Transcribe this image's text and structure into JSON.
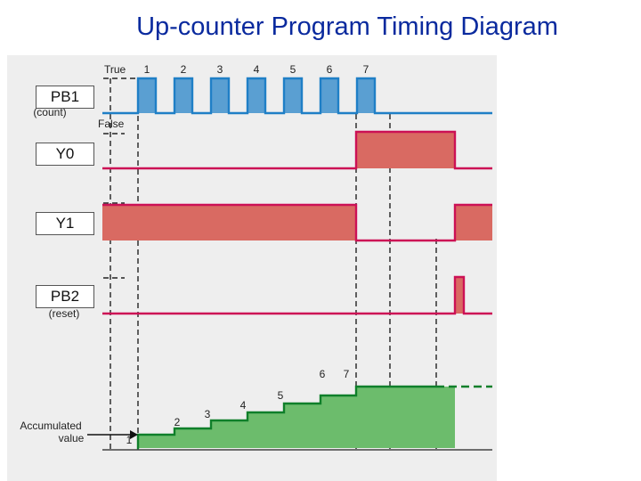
{
  "title": "Up-counter Program Timing Diagram",
  "signals": {
    "pb1": {
      "label": "PB1",
      "sublabel": "(count)"
    },
    "y0": {
      "label": "Y0"
    },
    "y1": {
      "label": "Y1"
    },
    "pb2": {
      "label": "PB2",
      "sublabel": "(reset)"
    },
    "acc": {
      "label_line1": "Accumulated",
      "label_line2": "value"
    }
  },
  "state_labels": {
    "true": "True",
    "false": "False"
  },
  "pulse_numbers": [
    "1",
    "2",
    "3",
    "4",
    "5",
    "6",
    "7"
  ],
  "count_numbers": [
    "1",
    "2",
    "3",
    "4",
    "5",
    "6",
    "7"
  ],
  "colors": {
    "title": "#0a2a9e",
    "pb1_line": "#1f7fc6",
    "pb1_fill": "#5a9fd2",
    "output_line": "#cc1155",
    "output_fill": "#d96a62",
    "acc_line": "#0f7f2a",
    "acc_fill": "#6cbc6c"
  }
}
